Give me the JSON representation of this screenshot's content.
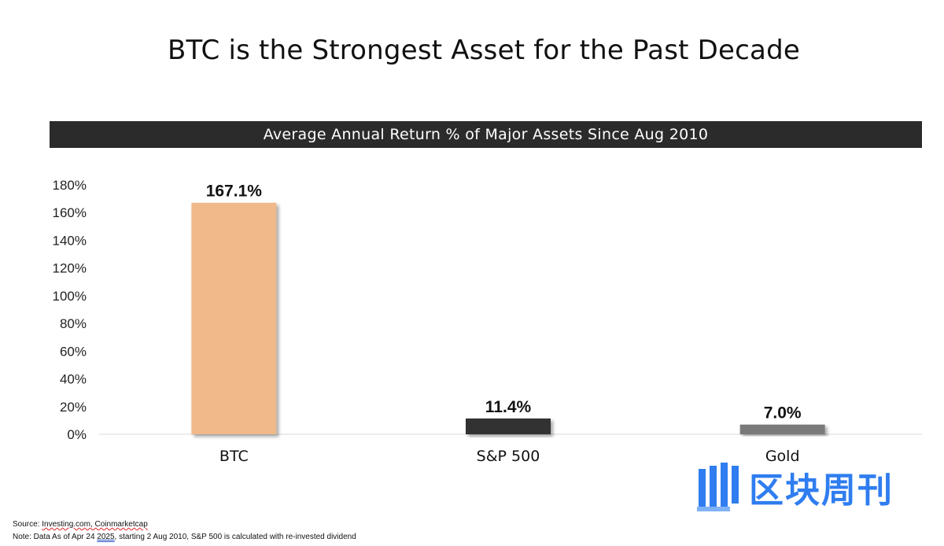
{
  "header": {
    "title": "BTC is the Strongest Asset for the Past Decade"
  },
  "chart_data": {
    "type": "bar",
    "title": "Average Annual Return % of Major Assets Since Aug 2010",
    "categories": [
      "BTC",
      "S&P 500",
      "Gold"
    ],
    "values": [
      167.1,
      11.4,
      7.0
    ],
    "data_labels": [
      "167.1%",
      "11.4%",
      "7.0%"
    ],
    "bar_colors": [
      "#efb98a",
      "#333333",
      "#7a7a7a"
    ],
    "xlabel": "",
    "ylabel": "",
    "ylim": [
      0,
      180
    ],
    "yticks": [
      0,
      20,
      40,
      60,
      80,
      100,
      120,
      140,
      160,
      180
    ],
    "ytick_labels": [
      "0%",
      "20%",
      "40%",
      "60%",
      "80%",
      "100%",
      "120%",
      "140%",
      "160%",
      "180%"
    ],
    "grid": false,
    "legend": "none"
  },
  "footer": {
    "source_prefix": "Source: ",
    "source_sites": "Investing.com, Coinmarketcap",
    "note_prefix": "Note: Data As of Apr 24 ",
    "note_year": "2025",
    "note_rest": ", starting 2 Aug 2010, S&P 500 is calculated with re-invested dividend"
  },
  "watermark": {
    "text": "区块周刊",
    "color": "#2f7df0"
  }
}
